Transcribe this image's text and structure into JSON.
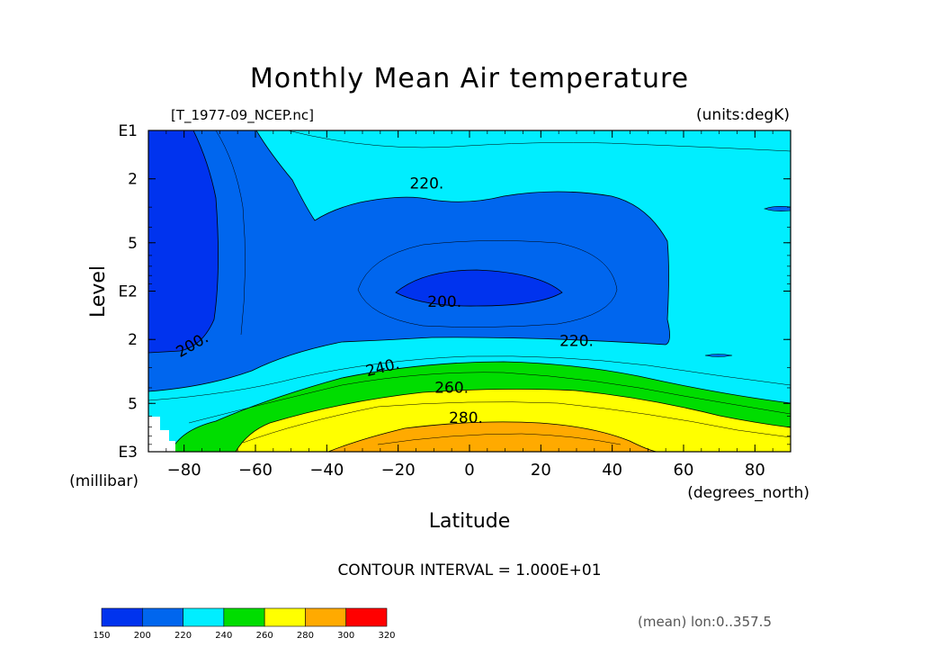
{
  "chart_data": {
    "type": "contour",
    "title": "Monthly Mean Air temperature",
    "file_label": "[T_1977-09_NCEP.nc]",
    "units_label": "(units:degK)",
    "xlabel": "Latitude",
    "x_units": "(degrees_north)",
    "ylabel": "Level",
    "y_units": "(millibar)",
    "xlim": [
      -90,
      90
    ],
    "x_ticks": [
      -80,
      -60,
      -40,
      -20,
      0,
      20,
      40,
      60,
      80
    ],
    "x_tick_labels": [
      "−80",
      "−60",
      "−40",
      "−20",
      "0",
      "20",
      "40",
      "60",
      "80"
    ],
    "y_range_mb": [
      1000,
      10
    ],
    "y_ticks": [
      {
        "mb": 10,
        "label": "E1"
      },
      {
        "mb": 20,
        "label": "2"
      },
      {
        "mb": 50,
        "label": "5"
      },
      {
        "mb": 100,
        "label": "E2"
      },
      {
        "mb": 200,
        "label": "2"
      },
      {
        "mb": 500,
        "label": "5"
      },
      {
        "mb": 1000,
        "label": "E3"
      }
    ],
    "contour_interval_text": "CONTOUR INTERVAL = 1.000E+01",
    "contour_labels": [
      {
        "text": "220.",
        "lat": -12,
        "mb": 23
      },
      {
        "text": "200.",
        "lat": -7,
        "mb": 125
      },
      {
        "text": "220.",
        "lat": 30,
        "mb": 220
      },
      {
        "text": "200.",
        "lat": -77,
        "mb": 230
      },
      {
        "text": "240.",
        "lat": -24,
        "mb": 320
      },
      {
        "text": "260.",
        "lat": -5,
        "mb": 430
      },
      {
        "text": "280.",
        "lat": -1,
        "mb": 660
      }
    ],
    "levels": [
      150,
      200,
      220,
      240,
      260,
      280,
      300,
      320
    ],
    "colorbar": [
      {
        "from": 150,
        "to": 200,
        "color": "#0033ee"
      },
      {
        "from": 200,
        "to": 220,
        "color": "#0066ee"
      },
      {
        "from": 220,
        "to": 240,
        "color": "#00eeff"
      },
      {
        "from": 240,
        "to": 260,
        "color": "#00dd00"
      },
      {
        "from": 260,
        "to": 280,
        "color": "#ffff00"
      },
      {
        "from": 280,
        "to": 300,
        "color": "#ffaa00"
      },
      {
        "from": 300,
        "to": 320,
        "color": "#ff0000"
      }
    ],
    "colorbar_labels": [
      "150",
      "200",
      "220",
      "240",
      "260",
      "280",
      "300",
      "320"
    ],
    "footer_note": "(mean) lon:0..357.5"
  }
}
